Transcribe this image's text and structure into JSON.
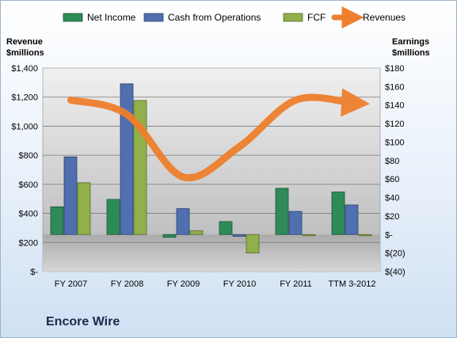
{
  "chart_data": {
    "type": "bar",
    "title": "Encore Wire",
    "left_axis_title": [
      "Revenue",
      "$millions"
    ],
    "right_axis_title": [
      "Earnings",
      "$millions"
    ],
    "categories": [
      "FY 2007",
      "FY 2008",
      "FY 2009",
      "FY 2010",
      "FY 2011",
      "TTM 3-2012"
    ],
    "y_left": {
      "min": 0,
      "max": 1400,
      "step": 200,
      "tick_labels": [
        "$-",
        "$200",
        "$400",
        "$600",
        "$800",
        "$1,000",
        "$1,200",
        "$1,400"
      ]
    },
    "y_right": {
      "min": -40,
      "max": 180,
      "step": 20,
      "tick_labels": [
        "$(40)",
        "$(20)",
        "$-",
        "$20",
        "$40",
        "$60",
        "$80",
        "$100",
        "$120",
        "$140",
        "$160",
        "$180"
      ]
    },
    "series": [
      {
        "name": "Net Income",
        "axis": "right",
        "kind": "bar",
        "color": "#2e8b57",
        "values": [
          30,
          38,
          -3,
          14,
          50,
          46
        ]
      },
      {
        "name": "Cash from Operations",
        "axis": "right",
        "kind": "bar",
        "color": "#4f6fb0",
        "values": [
          84,
          163,
          28,
          -2,
          25,
          32
        ]
      },
      {
        "name": "FCF",
        "axis": "right",
        "kind": "bar",
        "color": "#8fb04a",
        "values": [
          56,
          145,
          4,
          -20,
          -1,
          -1
        ]
      },
      {
        "name": "Revenues",
        "axis": "left",
        "kind": "line",
        "color": "#ee7f2d",
        "values": [
          1180,
          1080,
          650,
          860,
          1180,
          1160
        ]
      }
    ],
    "legend_position": "top",
    "grid": true
  }
}
